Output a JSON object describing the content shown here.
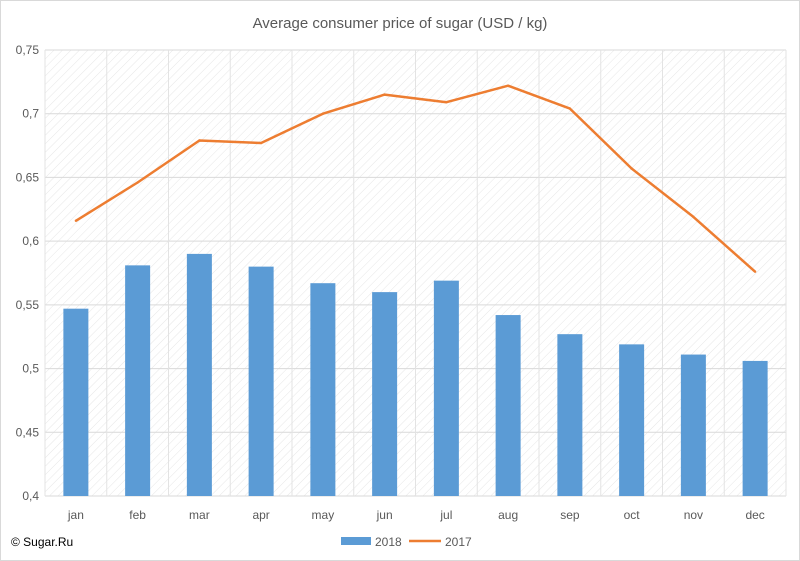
{
  "chart_data": {
    "type": "bar+line",
    "title": "Average consumer price of sugar (USD / kg)",
    "categories": [
      "jan",
      "feb",
      "mar",
      "apr",
      "may",
      "jun",
      "jul",
      "aug",
      "sep",
      "oct",
      "nov",
      "dec"
    ],
    "series": [
      {
        "name": "2018",
        "type": "bar",
        "color": "#5b9bd5",
        "values": [
          0.547,
          0.581,
          0.59,
          0.58,
          0.567,
          0.56,
          0.569,
          0.542,
          0.527,
          0.519,
          0.511,
          0.506
        ]
      },
      {
        "name": "2017",
        "type": "line",
        "color": "#ed7d31",
        "values": [
          0.616,
          0.646,
          0.679,
          0.677,
          0.7,
          0.715,
          0.709,
          0.722,
          0.704,
          0.657,
          0.619,
          0.576
        ]
      }
    ],
    "yticks": [
      "0,4",
      "0,45",
      "0,5",
      "0,55",
      "0,6",
      "0,65",
      "0,7",
      "0,75"
    ],
    "ylim": [
      0.4,
      0.75
    ],
    "grid": true,
    "legend_position": "bottom"
  },
  "footer": {
    "copyright": "© Sugar.Ru"
  }
}
